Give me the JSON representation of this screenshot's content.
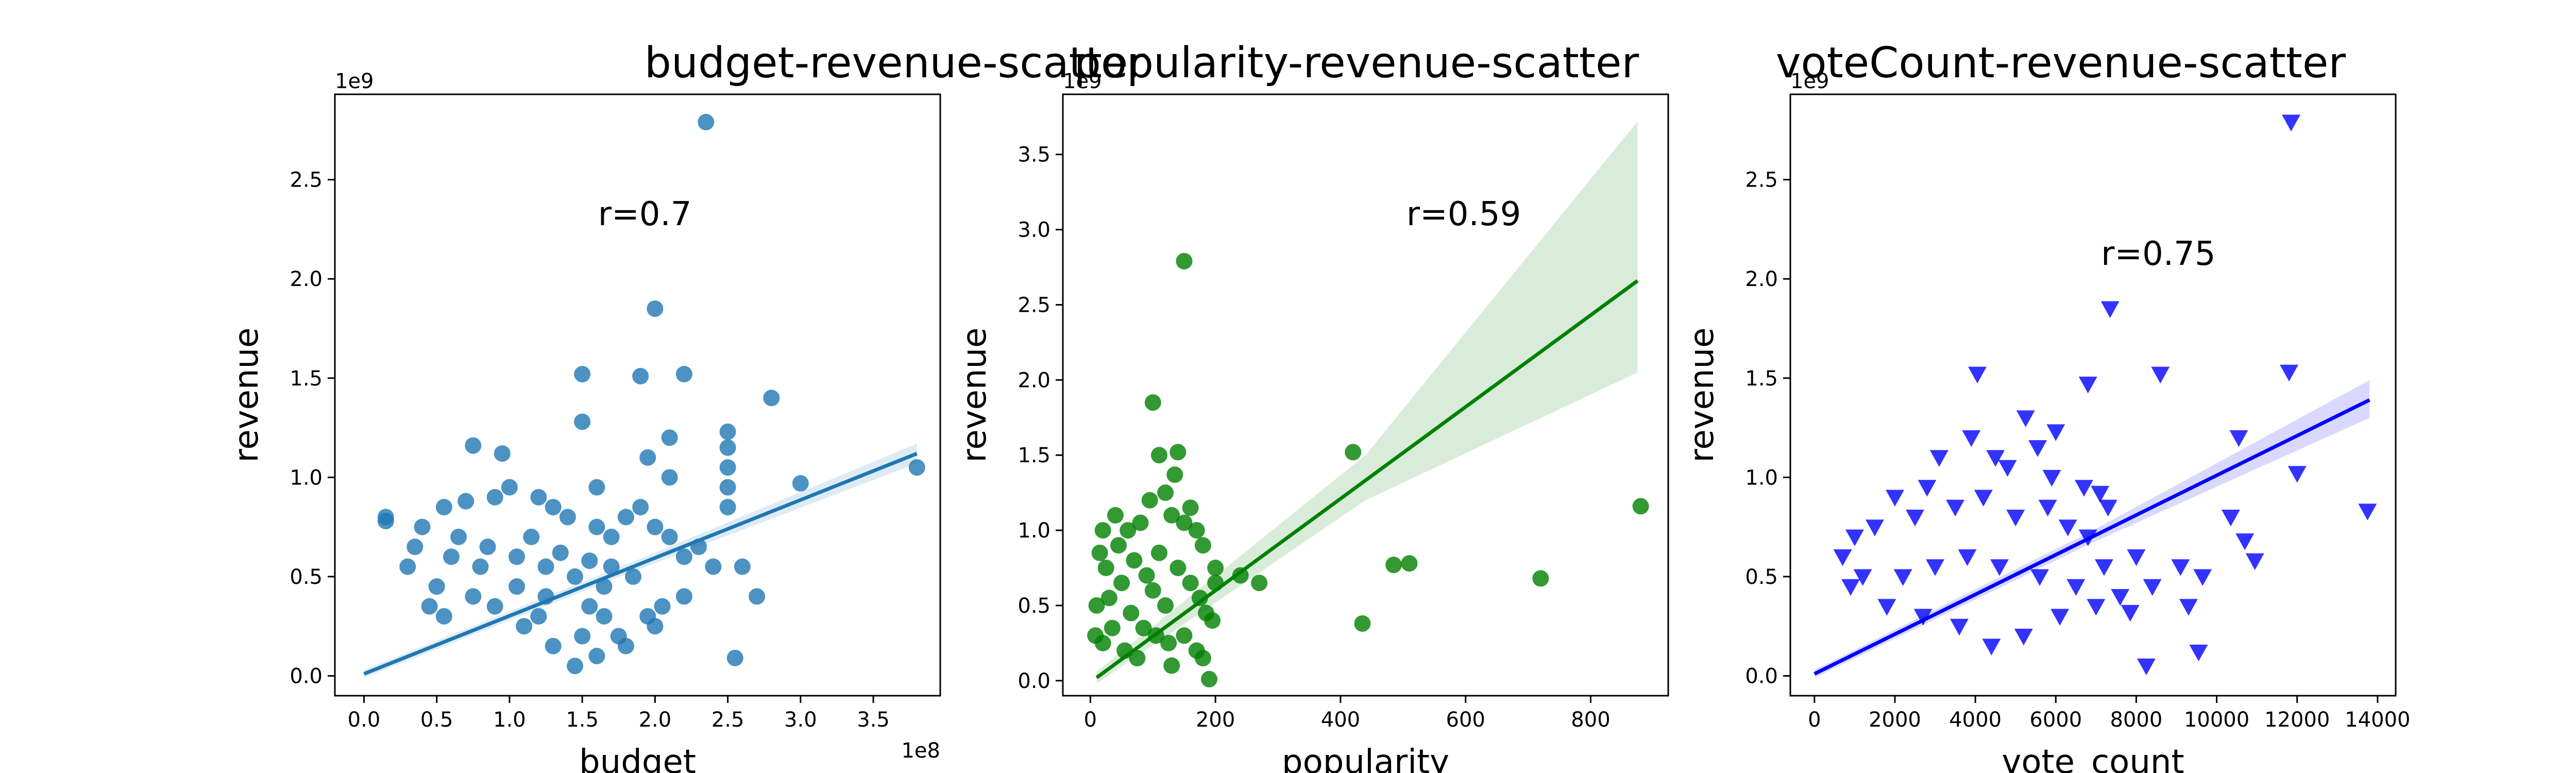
{
  "chart_data": [
    {
      "type": "scatter",
      "title": "budget-revenue-scatter",
      "xlabel": "budget",
      "ylabel": "revenue",
      "x_offset_text": "1e8",
      "y_offset_text": "1e9",
      "xlim": [
        -0.2,
        3.96
      ],
      "ylim": [
        -0.1,
        2.93
      ],
      "xticks": [
        0.0,
        0.5,
        1.0,
        1.5,
        2.0,
        2.5,
        3.0,
        3.5
      ],
      "xtick_labels": [
        "0.0",
        "0.5",
        "1.0",
        "1.5",
        "2.0",
        "2.5",
        "3.0",
        "3.5"
      ],
      "yticks": [
        0.0,
        0.5,
        1.0,
        1.5,
        2.0,
        2.5
      ],
      "ytick_labels": [
        "0.0",
        "0.5",
        "1.0",
        "1.5",
        "2.0",
        "2.5"
      ],
      "annotation": {
        "text": "r=0.7",
        "x": 1.93,
        "y": 2.27
      },
      "color": "#1f77b4",
      "marker": "circle",
      "grid": false,
      "fit_line": {
        "x": [
          0.0,
          3.8
        ],
        "y": [
          0.01,
          1.12
        ]
      },
      "confidence_band": {
        "x": [
          0.0,
          1.9,
          3.8
        ],
        "lower": [
          -0.01,
          0.54,
          1.07
        ],
        "upper": [
          0.03,
          0.59,
          1.17
        ]
      },
      "points": [
        [
          2.35,
          2.79
        ],
        [
          2.0,
          1.85
        ],
        [
          1.5,
          1.52
        ],
        [
          1.9,
          1.51
        ],
        [
          2.2,
          1.52
        ],
        [
          2.8,
          1.4
        ],
        [
          3.8,
          1.05
        ],
        [
          3.0,
          0.97
        ],
        [
          1.5,
          1.28
        ],
        [
          2.1,
          1.2
        ],
        [
          2.5,
          1.23
        ],
        [
          2.5,
          1.15
        ],
        [
          2.5,
          1.05
        ],
        [
          2.5,
          0.95
        ],
        [
          2.5,
          0.85
        ],
        [
          0.75,
          1.16
        ],
        [
          0.95,
          1.12
        ],
        [
          1.95,
          1.1
        ],
        [
          2.1,
          1.0
        ],
        [
          1.6,
          0.95
        ],
        [
          2.6,
          0.55
        ],
        [
          2.7,
          0.4
        ],
        [
          2.55,
          0.09
        ],
        [
          0.15,
          0.8
        ],
        [
          0.15,
          0.78
        ],
        [
          0.4,
          0.75
        ],
        [
          0.55,
          0.85
        ],
        [
          0.7,
          0.88
        ],
        [
          0.9,
          0.9
        ],
        [
          1.0,
          0.95
        ],
        [
          1.2,
          0.9
        ],
        [
          1.3,
          0.85
        ],
        [
          1.4,
          0.8
        ],
        [
          1.6,
          0.75
        ],
        [
          1.7,
          0.7
        ],
        [
          1.8,
          0.8
        ],
        [
          1.9,
          0.85
        ],
        [
          2.0,
          0.75
        ],
        [
          2.1,
          0.7
        ],
        [
          2.2,
          0.6
        ],
        [
          2.3,
          0.65
        ],
        [
          2.4,
          0.55
        ],
        [
          1.75,
          0.2
        ],
        [
          1.95,
          0.3
        ],
        [
          2.05,
          0.35
        ],
        [
          2.0,
          0.25
        ],
        [
          2.2,
          0.4
        ],
        [
          1.3,
          0.15
        ],
        [
          1.5,
          0.2
        ],
        [
          1.6,
          0.1
        ],
        [
          1.45,
          0.05
        ],
        [
          1.8,
          0.15
        ],
        [
          1.1,
          0.25
        ],
        [
          1.2,
          0.3
        ],
        [
          0.3,
          0.55
        ],
        [
          0.35,
          0.65
        ],
        [
          0.5,
          0.45
        ],
        [
          0.6,
          0.6
        ],
        [
          0.65,
          0.7
        ],
        [
          0.8,
          0.55
        ],
        [
          0.85,
          0.65
        ],
        [
          1.05,
          0.6
        ],
        [
          1.15,
          0.7
        ],
        [
          1.25,
          0.55
        ],
        [
          1.35,
          0.62
        ],
        [
          1.45,
          0.5
        ],
        [
          1.55,
          0.58
        ],
        [
          1.65,
          0.45
        ],
        [
          1.7,
          0.55
        ],
        [
          1.85,
          0.5
        ],
        [
          1.55,
          0.35
        ],
        [
          1.65,
          0.3
        ],
        [
          1.05,
          0.45
        ],
        [
          1.25,
          0.4
        ],
        [
          0.45,
          0.35
        ],
        [
          0.55,
          0.3
        ],
        [
          0.75,
          0.4
        ],
        [
          0.9,
          0.35
        ]
      ]
    },
    {
      "type": "scatter",
      "title": "popularity-revenue-scatter",
      "xlabel": "popularity",
      "ylabel": "revenue",
      "x_offset_text": "",
      "y_offset_text": "1e9",
      "xlim": [
        -44,
        924
      ],
      "ylim": [
        -0.1,
        3.9
      ],
      "xticks": [
        0,
        200,
        400,
        600,
        800
      ],
      "xtick_labels": [
        "0",
        "200",
        "400",
        "600",
        "800"
      ],
      "yticks": [
        0.0,
        0.5,
        1.0,
        1.5,
        2.0,
        2.5,
        3.0,
        3.5
      ],
      "ytick_labels": [
        "0.0",
        "0.5",
        "1.0",
        "1.5",
        "2.0",
        "2.5",
        "3.0",
        "3.5"
      ],
      "annotation": {
        "text": "r=0.59",
        "x": 597,
        "y": 3.03
      },
      "color": "#008000",
      "marker": "circle",
      "grid": false,
      "fit_line": {
        "x": [
          10,
          875
        ],
        "y": [
          0.02,
          2.66
        ]
      },
      "confidence_band": {
        "x": [
          10,
          440,
          875
        ],
        "lower": [
          -0.02,
          1.2,
          2.05
        ],
        "upper": [
          0.06,
          1.5,
          3.72
        ]
      },
      "points": [
        [
          150,
          2.79
        ],
        [
          100,
          1.85
        ],
        [
          420,
          1.52
        ],
        [
          880,
          1.16
        ],
        [
          720,
          0.68
        ],
        [
          510,
          0.78
        ],
        [
          485,
          0.77
        ],
        [
          435,
          0.38
        ],
        [
          270,
          0.65
        ],
        [
          240,
          0.7
        ],
        [
          200,
          0.75
        ],
        [
          200,
          0.65
        ],
        [
          190,
          0.01
        ],
        [
          140,
          1.52
        ],
        [
          110,
          1.5
        ],
        [
          135,
          1.37
        ],
        [
          120,
          1.25
        ],
        [
          160,
          1.15
        ],
        [
          170,
          1.0
        ],
        [
          180,
          0.9
        ],
        [
          150,
          1.05
        ],
        [
          130,
          1.1
        ],
        [
          95,
          1.2
        ],
        [
          80,
          1.05
        ],
        [
          60,
          1.0
        ],
        [
          40,
          1.1
        ],
        [
          20,
          1.0
        ],
        [
          15,
          0.85
        ],
        [
          25,
          0.75
        ],
        [
          45,
          0.9
        ],
        [
          70,
          0.8
        ],
        [
          90,
          0.7
        ],
        [
          110,
          0.85
        ],
        [
          140,
          0.75
        ],
        [
          160,
          0.65
        ],
        [
          175,
          0.55
        ],
        [
          185,
          0.45
        ],
        [
          195,
          0.4
        ],
        [
          120,
          0.5
        ],
        [
          100,
          0.6
        ],
        [
          150,
          0.3
        ],
        [
          170,
          0.2
        ],
        [
          180,
          0.15
        ],
        [
          10,
          0.5
        ],
        [
          30,
          0.55
        ],
        [
          50,
          0.65
        ],
        [
          65,
          0.45
        ],
        [
          85,
          0.35
        ],
        [
          105,
          0.3
        ],
        [
          125,
          0.25
        ],
        [
          130,
          0.1
        ],
        [
          8,
          0.3
        ],
        [
          20,
          0.25
        ],
        [
          35,
          0.35
        ],
        [
          55,
          0.2
        ],
        [
          75,
          0.15
        ]
      ]
    },
    {
      "type": "scatter",
      "title": "voteCount-revenue-scatter",
      "xlabel": "vote_count",
      "ylabel": "revenue",
      "x_offset_text": "",
      "y_offset_text": "1e9",
      "xlim": [
        -600,
        14450
      ],
      "ylim": [
        -0.1,
        2.93
      ],
      "xticks": [
        0,
        2000,
        4000,
        6000,
        8000,
        10000,
        12000,
        14000
      ],
      "xtick_labels": [
        "0",
        "2000",
        "4000",
        "6000",
        "8000",
        "10000",
        "12000",
        "14000"
      ],
      "yticks": [
        0.0,
        0.5,
        1.0,
        1.5,
        2.0,
        2.5
      ],
      "ytick_labels": [
        "0.0",
        "0.5",
        "1.0",
        "1.5",
        "2.0",
        "2.5"
      ],
      "annotation": {
        "text": "r=0.75",
        "x": 8550,
        "y": 2.07
      },
      "color": "#0000ff",
      "marker": "triangle-down",
      "grid": false,
      "fit_line": {
        "x": [
          0,
          13800
        ],
        "y": [
          0.01,
          1.39
        ]
      },
      "confidence_band": {
        "x": [
          0,
          6900,
          13800
        ],
        "lower": [
          -0.01,
          0.67,
          1.3
        ],
        "upper": [
          0.03,
          0.73,
          1.49
        ]
      },
      "points": [
        [
          11850,
          2.79
        ],
        [
          7350,
          1.85
        ],
        [
          4050,
          1.52
        ],
        [
          6800,
          1.47
        ],
        [
          8600,
          1.52
        ],
        [
          11800,
          1.53
        ],
        [
          10550,
          1.2
        ],
        [
          12000,
          1.02
        ],
        [
          13750,
          0.83
        ],
        [
          10950,
          0.58
        ],
        [
          10700,
          0.68
        ],
        [
          10350,
          0.8
        ],
        [
          9650,
          0.5
        ],
        [
          9300,
          0.35
        ],
        [
          9550,
          0.12
        ],
        [
          8250,
          0.05
        ],
        [
          7850,
          0.32
        ],
        [
          5250,
          1.3
        ],
        [
          5550,
          1.15
        ],
        [
          6000,
          1.23
        ],
        [
          3100,
          1.1
        ],
        [
          3900,
          1.2
        ],
        [
          4500,
          1.1
        ],
        [
          4800,
          1.05
        ],
        [
          2800,
          0.95
        ],
        [
          2500,
          0.8
        ],
        [
          2000,
          0.9
        ],
        [
          1500,
          0.75
        ],
        [
          1000,
          0.7
        ],
        [
          700,
          0.6
        ],
        [
          3500,
          0.85
        ],
        [
          4200,
          0.9
        ],
        [
          5000,
          0.8
        ],
        [
          5800,
          0.85
        ],
        [
          6300,
          0.75
        ],
        [
          6800,
          0.7
        ],
        [
          7200,
          0.55
        ],
        [
          7600,
          0.4
        ],
        [
          8000,
          0.6
        ],
        [
          8400,
          0.45
        ],
        [
          9100,
          0.55
        ],
        [
          6500,
          0.45
        ],
        [
          7000,
          0.35
        ],
        [
          5600,
          0.5
        ],
        [
          4600,
          0.55
        ],
        [
          3800,
          0.6
        ],
        [
          3000,
          0.55
        ],
        [
          2200,
          0.5
        ],
        [
          6100,
          0.3
        ],
        [
          5200,
          0.2
        ],
        [
          4400,
          0.15
        ],
        [
          3600,
          0.25
        ],
        [
          2700,
          0.3
        ],
        [
          1800,
          0.35
        ],
        [
          5900,
          1.0
        ],
        [
          6700,
          0.95
        ],
        [
          7100,
          0.92
        ],
        [
          7300,
          0.85
        ],
        [
          1200,
          0.5
        ],
        [
          900,
          0.45
        ]
      ]
    }
  ]
}
